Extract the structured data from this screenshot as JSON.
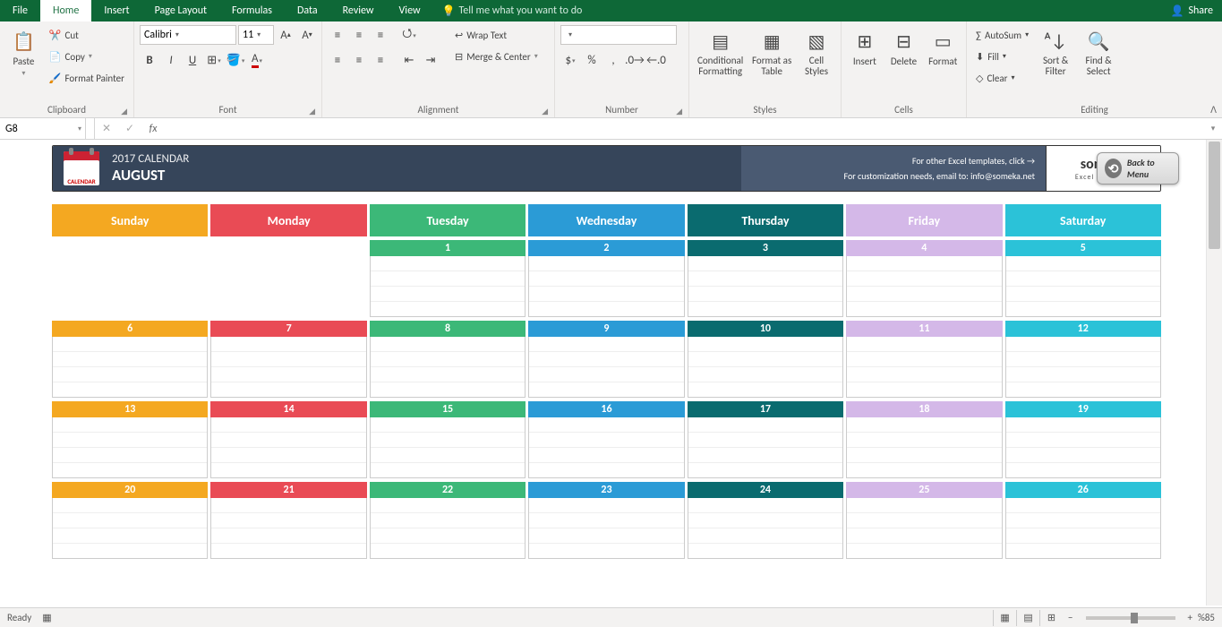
{
  "tabs": {
    "file": "File",
    "home": "Home",
    "insert": "Insert",
    "pagelayout": "Page Layout",
    "formulas": "Formulas",
    "data": "Data",
    "review": "Review",
    "view": "View",
    "tell_me": "Tell me what you want to do",
    "share": "Share"
  },
  "ribbon": {
    "clipboard": {
      "label": "Clipboard",
      "paste": "Paste",
      "cut": "Cut",
      "copy": "Copy",
      "format_painter": "Format Painter"
    },
    "font": {
      "label": "Font",
      "name": "Calibri",
      "size": "11"
    },
    "alignment": {
      "label": "Alignment",
      "wrap": "Wrap Text",
      "merge": "Merge & Center"
    },
    "number": {
      "label": "Number",
      "format": " "
    },
    "styles": {
      "label": "Styles",
      "conditional": "Conditional Formatting",
      "format_as": "Format as Table",
      "cell_styles": "Cell Styles"
    },
    "cells": {
      "label": "Cells",
      "insert": "Insert",
      "delete": "Delete",
      "format": "Format"
    },
    "editing": {
      "label": "Editing",
      "autosum": "AutoSum",
      "fill": "Fill",
      "clear": "Clear",
      "sort": "Sort & Filter",
      "find": "Find & Select"
    }
  },
  "formula_bar": {
    "cell_ref": "G8",
    "value": ""
  },
  "calendar": {
    "title": "2017 CALENDAR",
    "month": "AUGUST",
    "info1": "For other Excel templates, click →",
    "info2": "For customization needs, email to: info@someka.net",
    "logo": "someka",
    "logo_sub": "Excel Solutions",
    "back": "Back to Menu",
    "days": [
      {
        "label": "Sunday",
        "header_color": "#f4a821",
        "num_color": "#f4a821"
      },
      {
        "label": "Monday",
        "header_color": "#e94b55",
        "num_color": "#e94b55"
      },
      {
        "label": "Tuesday",
        "header_color": "#3cb878",
        "num_color": "#3cb878"
      },
      {
        "label": "Wednesday",
        "header_color": "#2b9bd6",
        "num_color": "#2b9bd6"
      },
      {
        "label": "Thursday",
        "header_color": "#0a6b6f",
        "num_color": "#0a6b6f"
      },
      {
        "label": "Friday",
        "header_color": "#d4b8e8",
        "num_color": "#d4b8e8"
      },
      {
        "label": "Saturday",
        "header_color": "#2bc2d8",
        "num_color": "#2bc2d8"
      }
    ],
    "weeks": [
      [
        "",
        "",
        "1",
        "2",
        "3",
        "4",
        "5"
      ],
      [
        "6",
        "7",
        "8",
        "9",
        "10",
        "11",
        "12"
      ],
      [
        "13",
        "14",
        "15",
        "16",
        "17",
        "18",
        "19"
      ],
      [
        "20",
        "21",
        "22",
        "23",
        "24",
        "25",
        "26"
      ]
    ]
  },
  "status": {
    "ready": "Ready",
    "zoom": "%85"
  }
}
